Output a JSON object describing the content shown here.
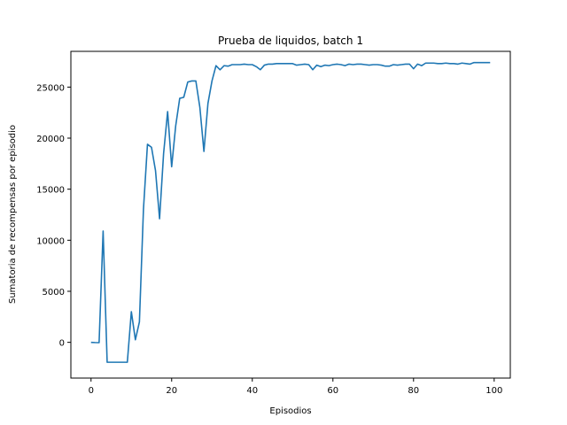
{
  "chart_data": {
    "type": "line",
    "title": "Prueba de liquidos, batch 1",
    "xlabel": "Episodios",
    "ylabel": "Sumatoria de recompensas por episodio",
    "xlim": [
      -5,
      104
    ],
    "ylim": [
      -3500,
      28500
    ],
    "xticks": [
      0,
      20,
      40,
      60,
      80,
      100
    ],
    "yticks": [
      0,
      5000,
      10000,
      15000,
      20000,
      25000
    ],
    "grid": false,
    "color": "#1f77b4",
    "series": [
      {
        "x": [
          0,
          1,
          2,
          3,
          4,
          5,
          6,
          7,
          8,
          9,
          10,
          11,
          12,
          13,
          14,
          15,
          16,
          17,
          18,
          19,
          20,
          21,
          22,
          23,
          24,
          25,
          26,
          27,
          28,
          29,
          30,
          31,
          32,
          33,
          34,
          35,
          36,
          37,
          38,
          39,
          40,
          41,
          42,
          43,
          44,
          45,
          46,
          47,
          48,
          49,
          50,
          51,
          52,
          53,
          54,
          55,
          56,
          57,
          58,
          59,
          60,
          61,
          62,
          63,
          64,
          65,
          66,
          67,
          68,
          69,
          70,
          71,
          72,
          73,
          74,
          75,
          76,
          77,
          78,
          79,
          80,
          81,
          82,
          83,
          84,
          85,
          86,
          87,
          88,
          89,
          90,
          91,
          92,
          93,
          94,
          95,
          96,
          97,
          98,
          99
        ],
        "values": [
          0,
          -20,
          -30,
          10900,
          -1950,
          -1950,
          -1950,
          -1950,
          -1950,
          -1950,
          3000,
          250,
          2000,
          13000,
          19400,
          19100,
          16800,
          12100,
          18500,
          22600,
          17200,
          21200,
          23900,
          24000,
          25500,
          25600,
          25600,
          23000,
          18700,
          23400,
          25600,
          27100,
          26700,
          27100,
          27050,
          27200,
          27200,
          27200,
          27250,
          27200,
          27200,
          27000,
          26700,
          27150,
          27250,
          27250,
          27300,
          27300,
          27300,
          27300,
          27300,
          27150,
          27200,
          27250,
          27200,
          26700,
          27150,
          27000,
          27150,
          27100,
          27200,
          27250,
          27200,
          27100,
          27250,
          27200,
          27250,
          27250,
          27200,
          27150,
          27200,
          27200,
          27150,
          27050,
          27050,
          27200,
          27150,
          27200,
          27250,
          27250,
          26800,
          27250,
          27100,
          27350,
          27350,
          27350,
          27300,
          27300,
          27350,
          27300,
          27300,
          27250,
          27350,
          27300,
          27250,
          27400,
          27400,
          27400,
          27400,
          27400
        ]
      }
    ]
  }
}
